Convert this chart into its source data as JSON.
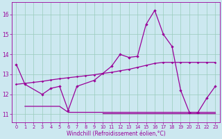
{
  "xlabel": "Windchill (Refroidissement éolien,°C)",
  "bg_color": "#cce8f0",
  "grid_color": "#99ccbb",
  "line_color": "#990099",
  "xlim": [
    -0.5,
    23.5
  ],
  "ylim": [
    10.6,
    16.6
  ],
  "yticks": [
    11,
    12,
    13,
    14,
    15,
    16
  ],
  "xticks": [
    0,
    1,
    2,
    3,
    4,
    5,
    6,
    7,
    8,
    9,
    10,
    11,
    12,
    13,
    14,
    15,
    16,
    17,
    18,
    19,
    20,
    21,
    22,
    23
  ],
  "series1_x": [
    0,
    1,
    3,
    4,
    5,
    6,
    7,
    9,
    11,
    12,
    13,
    14,
    15,
    16,
    17,
    18,
    19,
    20,
    21,
    22,
    23
  ],
  "series1_y": [
    13.5,
    12.5,
    12.0,
    12.3,
    12.4,
    11.2,
    12.4,
    12.7,
    13.4,
    14.0,
    13.85,
    13.9,
    15.5,
    16.2,
    15.0,
    14.4,
    12.2,
    11.1,
    11.1,
    11.8,
    12.4
  ],
  "series_trend_x": [
    0,
    1,
    2,
    3,
    4,
    5,
    6,
    7,
    8,
    9,
    10,
    11,
    12,
    13,
    14,
    15,
    16,
    17,
    18,
    19,
    20,
    21,
    22,
    23
  ],
  "series_trend_y": [
    12.5,
    12.55,
    12.6,
    12.65,
    12.72,
    12.78,
    12.83,
    12.88,
    12.93,
    12.98,
    13.05,
    13.1,
    13.18,
    13.25,
    13.35,
    13.45,
    13.55,
    13.6,
    13.6,
    13.6,
    13.6,
    13.6,
    13.6,
    13.6
  ],
  "series_flat_high_x": [
    1,
    2,
    3,
    4,
    5,
    6,
    7,
    8,
    9,
    10,
    11,
    12,
    13,
    14,
    15,
    16,
    17,
    18,
    19,
    20,
    21,
    22,
    23
  ],
  "series_flat_high_y": [
    11.4,
    11.4,
    11.4,
    11.4,
    11.4,
    11.1,
    11.1,
    11.1,
    11.1,
    11.1,
    11.1,
    11.1,
    11.1,
    11.1,
    11.1,
    11.1,
    11.1,
    11.1,
    11.1,
    11.1,
    11.1,
    11.1,
    11.1
  ],
  "series_flat_low_x": [
    10,
    11,
    12,
    13,
    14,
    15,
    16,
    17,
    18,
    19,
    20,
    21,
    22,
    23
  ],
  "series_flat_low_y": [
    11.05,
    11.05,
    11.05,
    11.05,
    11.05,
    11.05,
    11.05,
    11.05,
    11.05,
    11.05,
    11.05,
    11.05,
    11.05,
    11.05
  ]
}
